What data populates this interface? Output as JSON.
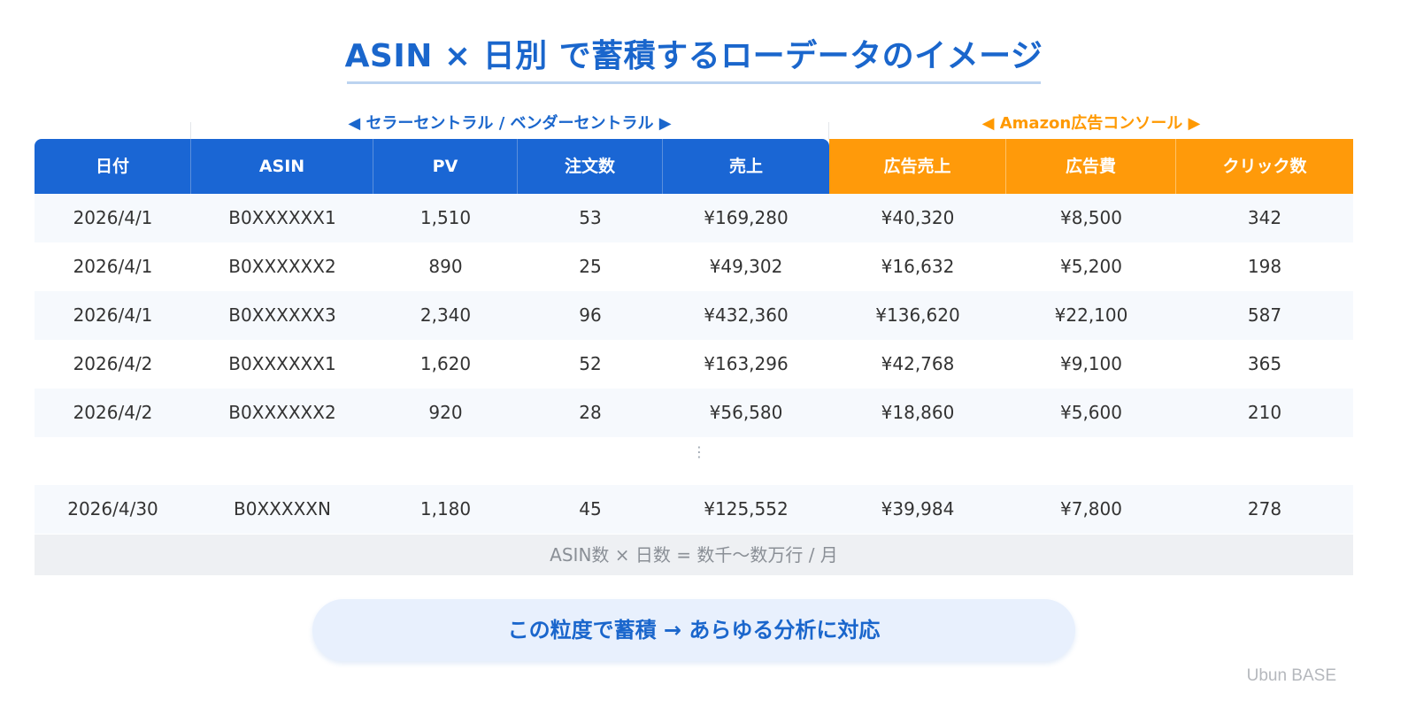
{
  "title": "ASIN × 日別 で蓄積するローデータのイメージ",
  "groups": {
    "seller": "◀ セラーセントラル / ベンダーセントラル ▶",
    "ads": "◀ Amazon広告コンソール ▶"
  },
  "columns": [
    "日付",
    "ASIN",
    "PV",
    "注文数",
    "売上",
    "広告売上",
    "広告費",
    "クリック数"
  ],
  "rows": [
    [
      "2026/4/1",
      "B0XXXXXX1",
      "1,510",
      "53",
      "¥169,280",
      "¥40,320",
      "¥8,500",
      "342"
    ],
    [
      "2026/4/1",
      "B0XXXXXX2",
      "890",
      "25",
      "¥49,302",
      "¥16,632",
      "¥5,200",
      "198"
    ],
    [
      "2026/4/1",
      "B0XXXXXX3",
      "2,340",
      "96",
      "¥432,360",
      "¥136,620",
      "¥22,100",
      "587"
    ],
    [
      "2026/4/2",
      "B0XXXXXX1",
      "1,620",
      "52",
      "¥163,296",
      "¥42,768",
      "¥9,100",
      "365"
    ],
    [
      "2026/4/2",
      "B0XXXXXX2",
      "920",
      "28",
      "¥56,580",
      "¥18,860",
      "¥5,600",
      "210"
    ]
  ],
  "ellipsis": "⋮",
  "last_row": [
    "2026/4/30",
    "B0XXXXXN",
    "1,180",
    "45",
    "¥125,552",
    "¥39,984",
    "¥7,800",
    "278"
  ],
  "summary": "ASIN数 × 日数 = 数千〜数万行 / 月",
  "cta": "この粒度で蓄積 → あらゆる分析に対応",
  "brand": "Ubun BASE",
  "colors": {
    "blue": "#1a66d4",
    "orange": "#ff9a0a"
  }
}
